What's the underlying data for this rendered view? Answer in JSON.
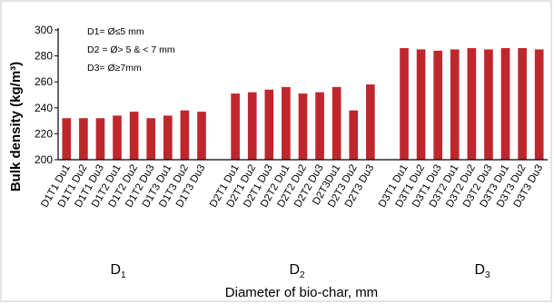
{
  "chart_data": {
    "type": "bar",
    "ylabel": "Bulk density (kg/m³)",
    "xlabel": "Diameter of bio-char, mm",
    "ylim": [
      200,
      300
    ],
    "yticks": [
      "200",
      "220",
      "240",
      "260",
      "280",
      "300"
    ],
    "categories": [
      "D1T1 Du1",
      "D1T1 Du2",
      "D1T1 Du3",
      "D1T2 Du1",
      "D1T2 Du2",
      "D1T2 Du3",
      "D1T3 Du1",
      "D1T3 Du2",
      "D1T3 Du3",
      "D2T1 Du1",
      "D2T1 Du2",
      "D2T1 Du3",
      "D2T2 Du1",
      "D2T2 Du2",
      "D2T2 Du3",
      "D2T3Du1",
      "D2T3 Du2",
      "D2T3 Du3",
      "D3T1 Du1",
      "D3T1 Du2",
      "D3T1 Du3",
      "D3T2 Du1",
      "D3T2 Du2",
      "D3T2 Du3",
      "D3T3 Du1",
      "D3T3 Du2",
      "D3T3 Du3"
    ],
    "values": [
      232,
      232,
      232,
      234,
      237,
      232,
      234,
      238,
      237,
      251,
      252,
      254,
      256,
      251,
      252,
      256,
      238,
      258,
      286,
      285,
      284,
      285,
      286,
      285,
      286,
      286,
      285
    ],
    "bar_color": "#c0272d",
    "groups": [
      {
        "letter": "D",
        "sub": "1"
      },
      {
        "letter": "D",
        "sub": "2"
      },
      {
        "letter": "D",
        "sub": "3"
      }
    ],
    "legend": [
      "D1= Ø≤5 mm",
      "D2 = Ø> 5 & < 7 mm",
      "D3= Ø≥7mm"
    ],
    "grid": false
  }
}
